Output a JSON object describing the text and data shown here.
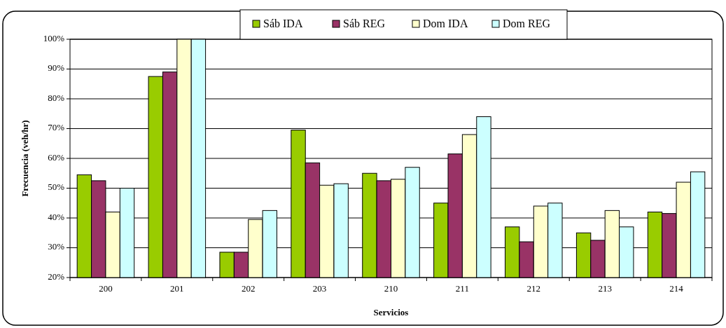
{
  "chart_data": {
    "type": "bar",
    "xlabel": "Servicios",
    "ylabel": "Frecuencia (veh/hr)",
    "categories": [
      "200",
      "201",
      "202",
      "203",
      "210",
      "211",
      "212",
      "213",
      "214"
    ],
    "series": [
      {
        "name": "Sáb IDA",
        "color": "#99cc00",
        "values": [
          54.5,
          87.5,
          28.5,
          69.5,
          55,
          45,
          37,
          35,
          42
        ]
      },
      {
        "name": "Sáb REG",
        "color": "#993366",
        "values": [
          52.5,
          89,
          28.5,
          58.5,
          52.5,
          61.5,
          32,
          32.5,
          41.5
        ]
      },
      {
        "name": "Dom IDA",
        "color": "#ffffcc",
        "values": [
          42,
          100,
          39.5,
          51,
          53,
          68,
          44,
          42.5,
          52
        ]
      },
      {
        "name": "Dom REG",
        "color": "#ccffff",
        "values": [
          50,
          100,
          42.5,
          51.5,
          57,
          74,
          45,
          37,
          55.5
        ]
      }
    ],
    "ylim": [
      20,
      100
    ],
    "yticks": [
      {
        "value": 20,
        "label": "20%"
      },
      {
        "value": 30,
        "label": "30%"
      },
      {
        "value": 40,
        "label": "40%"
      },
      {
        "value": 50,
        "label": "50%"
      },
      {
        "value": 60,
        "label": "60%"
      },
      {
        "value": 70,
        "label": "70%"
      },
      {
        "value": 80,
        "label": "80%"
      },
      {
        "value": 90,
        "label": "90%"
      },
      {
        "value": 100,
        "label": "100%"
      }
    ],
    "grid": "y",
    "legend": "top"
  }
}
